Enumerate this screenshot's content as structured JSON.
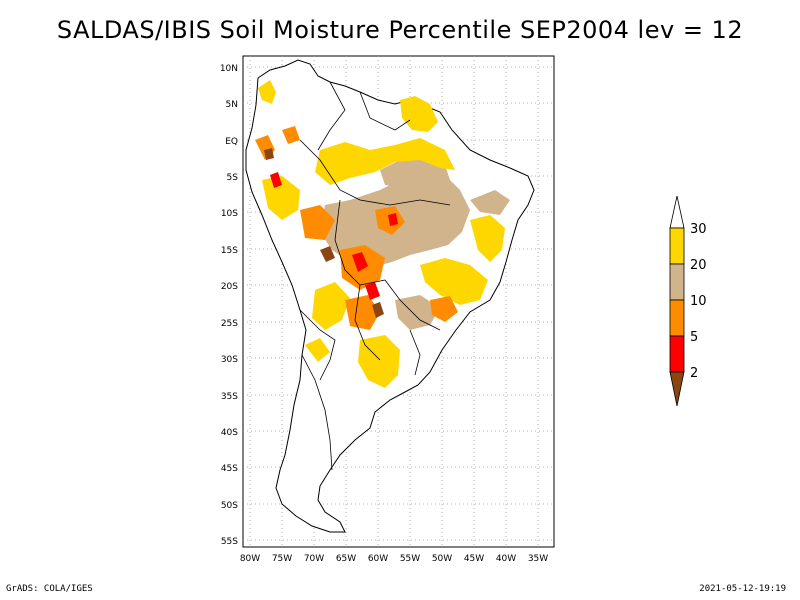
{
  "title": "SALDAS/IBIS Soil Moisture Percentile SEP2004 lev = 12",
  "footer": {
    "left": "GrADS: COLA/IGES",
    "right": "2021-05-12-19:19"
  },
  "map": {
    "lat_ticks": [
      "10N",
      "5N",
      "EQ",
      "5S",
      "10S",
      "15S",
      "20S",
      "25S",
      "30S",
      "35S",
      "40S",
      "45S",
      "50S",
      "55S"
    ],
    "lon_ticks": [
      "80W",
      "75W",
      "70W",
      "65W",
      "60W",
      "55W",
      "50W",
      "45W",
      "40W",
      "35W"
    ],
    "lat_range": [
      12,
      -56
    ],
    "lon_range": [
      -81,
      -33
    ],
    "grid": "dotted"
  },
  "colorbar": {
    "labels": [
      "30",
      "20",
      "10",
      "5",
      "2"
    ],
    "colors": {
      "above30": "#ffffff",
      "20-30": "#ffd700",
      "10-20": "#d2b48c",
      "5-10": "#ff8c00",
      "2-5": "#ff0000",
      "below2": "#8b4513"
    }
  }
}
